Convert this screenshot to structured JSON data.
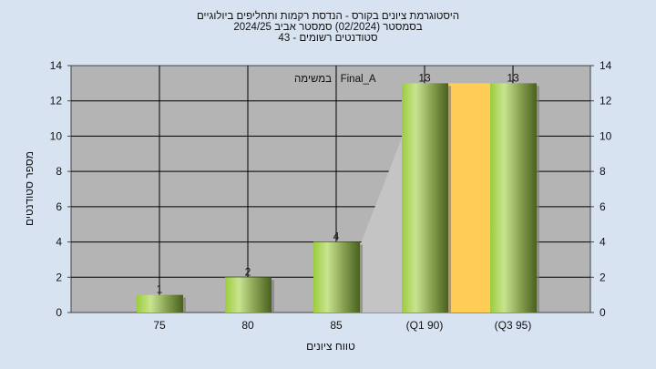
{
  "title_lines": [
    "היסטוגרמת ציונים בקורס - הנדסת רקמות ותחליפים ביולוגיים",
    "בסמסטר  (02/2024)  סמסטר אביב 2024/25",
    "סטודנטים רשומים - 43"
  ],
  "chart_data": {
    "type": "bar",
    "categories": [
      "75",
      "80",
      "85",
      "(Q1 90)",
      "(Q3 95)"
    ],
    "values": [
      1,
      2,
      4,
      13,
      13
    ],
    "xlabel": "טווח ציונים",
    "ylabel": "מספר סטודנטים",
    "ylim": [
      0,
      14
    ],
    "yticks": [
      0,
      2,
      4,
      6,
      8,
      10,
      12,
      14
    ],
    "annotation": "במשימה : Final_A",
    "grid": true,
    "interquartile_band": [
      "(Q1 90)",
      "(Q3 95)"
    ],
    "colors": {
      "bar": "#9ccc40",
      "band": "#ffcc55",
      "plot_bg": "#b4b4b4",
      "background": "#d8e3f2"
    }
  }
}
